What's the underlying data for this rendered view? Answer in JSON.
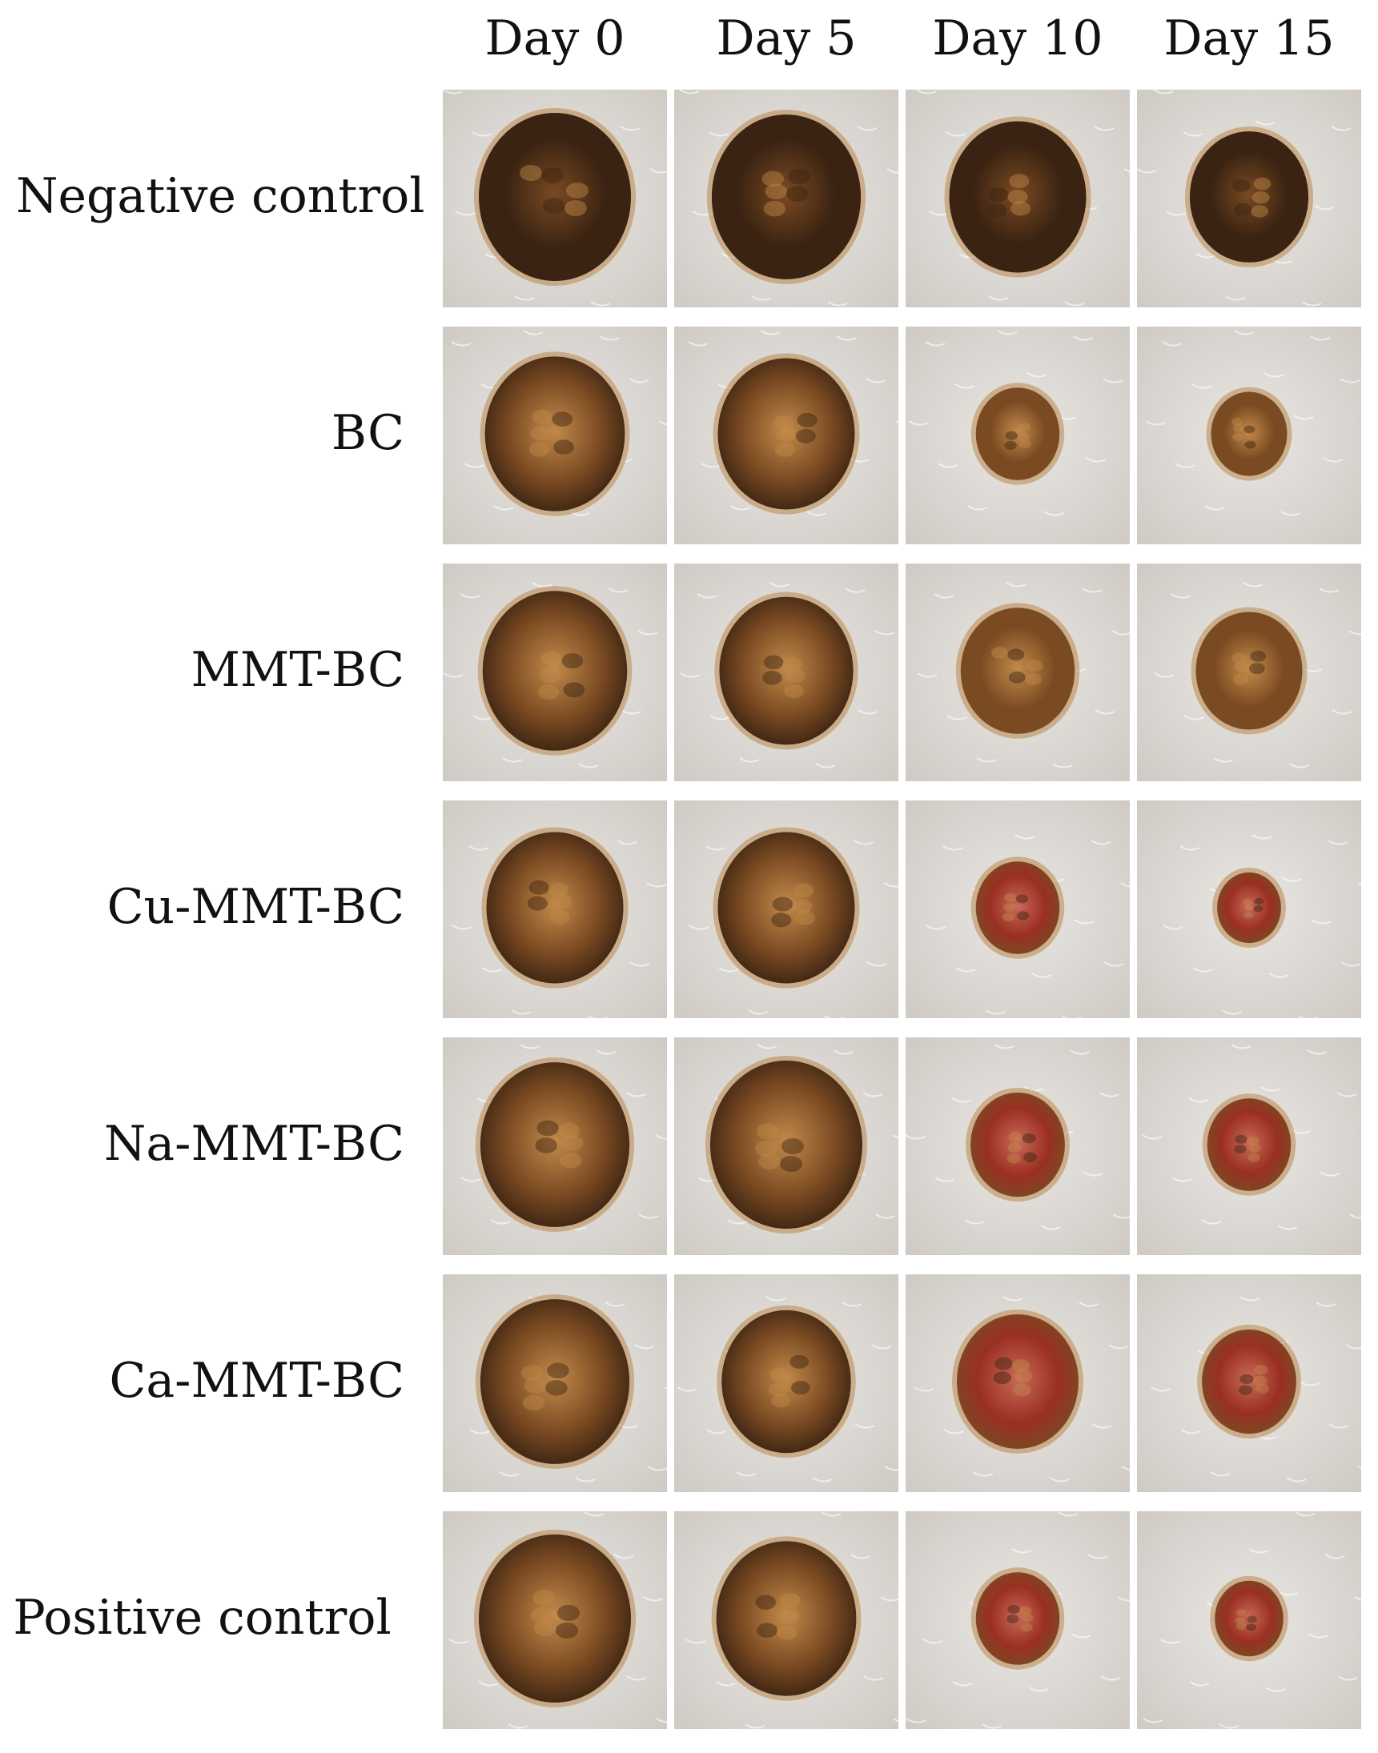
{
  "columns": [
    "Day 0",
    "Day 5",
    "Day 10",
    "Day 15"
  ],
  "rows": [
    {
      "label": "Negative control"
    },
    {
      "label": "BC"
    },
    {
      "label": "MMT-BC"
    },
    {
      "label": "Cu-MMT-BC"
    },
    {
      "label": "Na-MMT-BC"
    },
    {
      "label": "Ca-MMT-BC"
    },
    {
      "label": "Positive control"
    }
  ],
  "wound_size": [
    [
      1.0,
      0.98,
      0.9,
      0.78
    ],
    [
      0.92,
      0.9,
      0.55,
      0.5
    ],
    [
      0.95,
      0.88,
      0.75,
      0.7
    ],
    [
      0.9,
      0.9,
      0.55,
      0.42
    ],
    [
      0.98,
      1.0,
      0.62,
      0.55
    ],
    [
      0.98,
      0.85,
      0.8,
      0.62
    ],
    [
      1.0,
      0.92,
      0.55,
      0.45
    ]
  ],
  "colors": {
    "fur": "#e9e7e4",
    "fur_shadow": "#cfcac4",
    "scab_dark": "#3a2312",
    "scab_brown": "#7a4a22",
    "scab_tan": "#c28a4a",
    "tissue_red": "#9a2f22",
    "tissue_pink": "#c96a58"
  }
}
